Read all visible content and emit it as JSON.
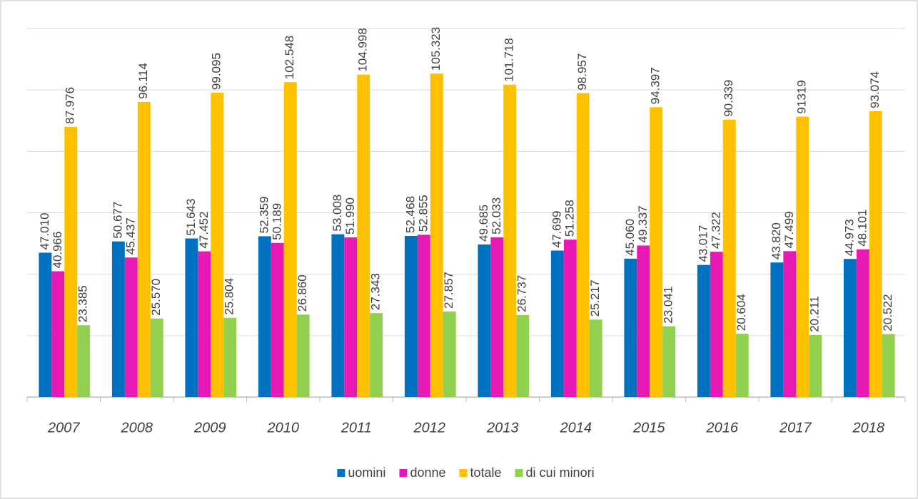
{
  "chart_data": {
    "type": "bar",
    "categories": [
      "2007",
      "2008",
      "2009",
      "2010",
      "2011",
      "2012",
      "2013",
      "2014",
      "2015",
      "2016",
      "2017",
      "2018"
    ],
    "series": [
      {
        "name": "uomini",
        "color": "#0070c0",
        "values": [
          47010,
          50677,
          51643,
          52359,
          53008,
          52468,
          49685,
          47699,
          45060,
          43017,
          43820,
          44973
        ],
        "value_labels": [
          "47.010",
          "50.677",
          "51.643",
          "52.359",
          "53.008",
          "52.468",
          "49.685",
          "47.699",
          "45.060",
          "43.017",
          "43.820",
          "44.973"
        ]
      },
      {
        "name": "donne",
        "color": "#e619b5",
        "values": [
          40966,
          45437,
          47452,
          50189,
          51990,
          52855,
          52033,
          51258,
          49337,
          47322,
          47499,
          48101
        ],
        "value_labels": [
          "40.966",
          "45.437",
          "47.452",
          "50.189",
          "51.990",
          "52.855",
          "52.033",
          "51.258",
          "49.337",
          "47.322",
          "47.499",
          "48.101"
        ]
      },
      {
        "name": "totale",
        "color": "#ffc000",
        "values": [
          87976,
          96114,
          99095,
          102548,
          104998,
          105323,
          101718,
          98957,
          94397,
          90339,
          91319,
          93074
        ],
        "value_labels": [
          "87.976",
          "96.114",
          "99.095",
          "102.548",
          "104.998",
          "105.323",
          "101.718",
          "98.957",
          "94.397",
          "90.339",
          "91319",
          "93.074"
        ]
      },
      {
        "name": "di cui minori",
        "color": "#92d050",
        "values": [
          23385,
          25570,
          25804,
          26860,
          27343,
          27857,
          26737,
          25217,
          23041,
          20604,
          20211,
          20522
        ],
        "value_labels": [
          "23.385",
          "25.570",
          "25.804",
          "26.860",
          "27.343",
          "27.857",
          "26.737",
          "25.217",
          "23.041",
          "20.604",
          "20.211",
          "20.522"
        ]
      }
    ],
    "ylim": [
      0,
      120000
    ],
    "yticks": [
      0,
      20000,
      40000,
      60000,
      80000,
      100000,
      120000
    ],
    "grid": true,
    "legend": "bottom"
  }
}
